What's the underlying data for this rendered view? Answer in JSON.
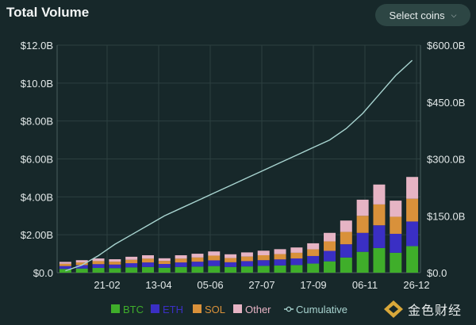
{
  "header": {
    "title": "Total Volume",
    "select_label": "Select coins",
    "select_icon": "chevron-down-icon"
  },
  "watermark": {
    "text": "金色财经",
    "icon": "jinse-logo-icon"
  },
  "colors": {
    "BTC": "#3fae2a",
    "ETH": "#3a2fc4",
    "SOL": "#d9913a",
    "Other": "#e6b4c4",
    "Cumulative": "#a8d4d0",
    "grid": "#2c3f40"
  },
  "chart_data": {
    "type": "bar",
    "title": "Total Volume",
    "stacked": true,
    "x_tick_labels": [
      "21-02",
      "13-04",
      "05-06",
      "27-07",
      "17-09",
      "06-11",
      "26-12"
    ],
    "y_left": {
      "ticks": [
        "$0.0",
        "$2.00B",
        "$4.00B",
        "$6.00B",
        "$8.00B",
        "$10.0B",
        "$12.0B"
      ],
      "range": [
        0,
        12
      ]
    },
    "y_right": {
      "ticks": [
        "$0.0",
        "$150.0B",
        "$300.0B",
        "$450.0B",
        "$600.0B"
      ],
      "range": [
        0,
        600
      ]
    },
    "legend": {
      "position": "bottom",
      "entries": [
        {
          "name": "BTC",
          "color": "#3fae2a"
        },
        {
          "name": "ETH",
          "color": "#3a2fc4"
        },
        {
          "name": "SOL",
          "color": "#d9913a"
        },
        {
          "name": "Other",
          "color": "#e6b4c4"
        },
        {
          "name": "Cumulative",
          "color": "#a8d4d0"
        }
      ]
    },
    "series": [
      {
        "name": "BTC",
        "values": [
          0.2,
          0.22,
          0.25,
          0.24,
          0.28,
          0.3,
          0.26,
          0.3,
          0.32,
          0.35,
          0.3,
          0.33,
          0.36,
          0.38,
          0.4,
          0.48,
          0.6,
          0.8,
          1.1,
          1.3,
          1.05,
          1.4
        ]
      },
      {
        "name": "ETH",
        "values": [
          0.15,
          0.18,
          0.2,
          0.19,
          0.22,
          0.24,
          0.2,
          0.24,
          0.26,
          0.3,
          0.25,
          0.28,
          0.3,
          0.32,
          0.35,
          0.4,
          0.55,
          0.7,
          1.0,
          1.2,
          1.0,
          1.3
        ]
      },
      {
        "name": "SOL",
        "values": [
          0.12,
          0.14,
          0.16,
          0.15,
          0.18,
          0.2,
          0.16,
          0.2,
          0.22,
          0.25,
          0.22,
          0.24,
          0.26,
          0.28,
          0.3,
          0.35,
          0.5,
          0.65,
          0.9,
          1.1,
          0.9,
          1.2
        ]
      },
      {
        "name": "Other",
        "values": [
          0.1,
          0.12,
          0.14,
          0.13,
          0.16,
          0.18,
          0.14,
          0.18,
          0.2,
          0.22,
          0.2,
          0.22,
          0.24,
          0.26,
          0.28,
          0.32,
          0.45,
          0.6,
          0.85,
          1.05,
          0.85,
          1.15
        ]
      },
      {
        "name": "Cumulative",
        "axis": "right",
        "values": [
          5,
          20,
          45,
          75,
          100,
          125,
          150,
          170,
          190,
          210,
          230,
          250,
          270,
          290,
          310,
          330,
          350,
          380,
          420,
          470,
          520,
          560
        ]
      }
    ]
  }
}
